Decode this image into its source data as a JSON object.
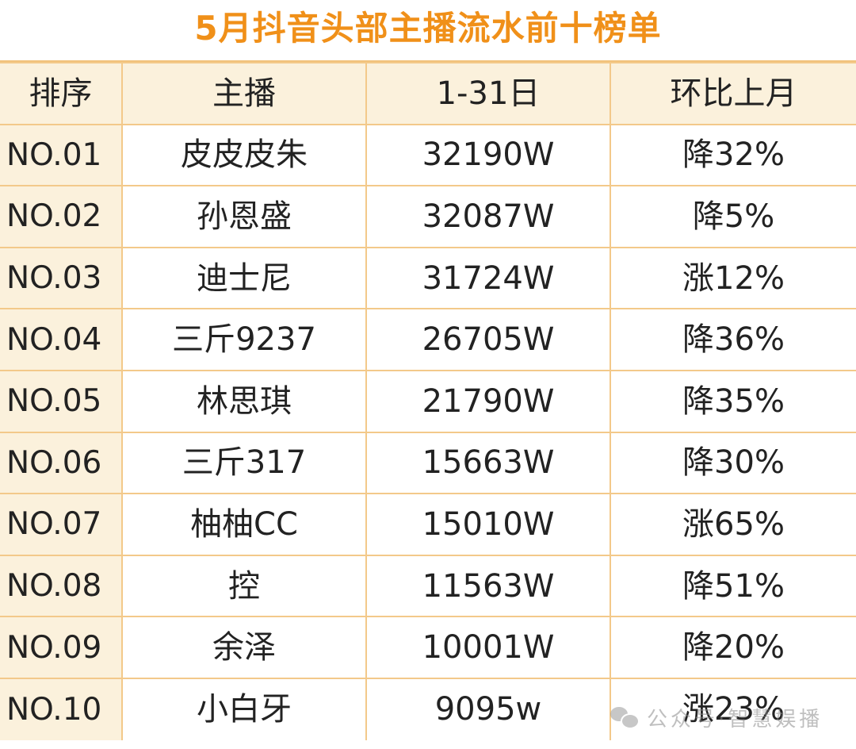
{
  "title": "5月抖音头部主播流水前十榜单",
  "colors": {
    "title": "#f09019",
    "header_bg": "#fbf1dc",
    "rank_bg": "#fbf1dc",
    "border": "#f3c98a",
    "text": "#222222"
  },
  "table": {
    "headers": [
      "排序",
      "主播",
      "1-31日",
      "环比上月"
    ],
    "rows": [
      {
        "rank": "NO.01",
        "streamer": "皮皮皮朱",
        "amount": "32190W",
        "change": "降32%"
      },
      {
        "rank": "NO.02",
        "streamer": "孙恩盛",
        "amount": "32087W",
        "change": "降5%"
      },
      {
        "rank": "NO.03",
        "streamer": "迪士尼",
        "amount": "31724W",
        "change": "涨12%"
      },
      {
        "rank": "NO.04",
        "streamer": "三斤9237",
        "amount": "26705W",
        "change": "降36%"
      },
      {
        "rank": "NO.05",
        "streamer": "林思琪",
        "amount": "21790W",
        "change": "降35%"
      },
      {
        "rank": "NO.06",
        "streamer": "三斤317",
        "amount": "15663W",
        "change": "降30%"
      },
      {
        "rank": "NO.07",
        "streamer": "柚柚CC",
        "amount": "15010W",
        "change": "涨65%"
      },
      {
        "rank": "NO.08",
        "streamer": "控",
        "amount": "11563W",
        "change": "降51%"
      },
      {
        "rank": "NO.09",
        "streamer": "余泽",
        "amount": "10001W",
        "change": "降20%"
      },
      {
        "rank": "NO.10",
        "streamer": "小白牙",
        "amount": "9095w",
        "change": "涨23%"
      }
    ]
  },
  "watermark": {
    "icon": "wechat-icon",
    "text": "公众号·智慧娱播"
  }
}
